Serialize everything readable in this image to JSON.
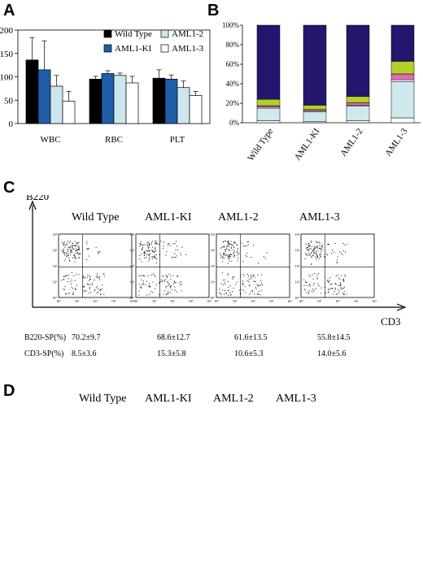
{
  "panels": {
    "a": "A",
    "b": "B",
    "c": "C",
    "d": "D"
  },
  "chart_data": [
    {
      "type": "bar",
      "categories": [
        "WBC",
        "RBC",
        "PLT"
      ],
      "ylim": [
        0,
        200
      ],
      "yticks": [
        0,
        50,
        100,
        150,
        200
      ],
      "legend_position": "top-right",
      "series": [
        {
          "name": "Wild Type",
          "color": "#000000",
          "values": [
            136,
            95,
            97
          ],
          "err": [
            48,
            6,
            18
          ]
        },
        {
          "name": "AML1-KI",
          "color": "#1f5ea8",
          "values": [
            115,
            107,
            95
          ],
          "err": [
            62,
            6,
            9
          ]
        },
        {
          "name": "AML1-2",
          "color": "#cde6ee",
          "values": [
            80,
            103,
            77
          ],
          "err": [
            23,
            5,
            14
          ]
        },
        {
          "name": "AML1-3",
          "color": "#ffffff",
          "values": [
            48,
            87,
            60
          ],
          "err": [
            21,
            14,
            9
          ]
        }
      ]
    },
    {
      "type": "bar",
      "stacked": true,
      "categories": [
        "Wild Type",
        "AML1-KI",
        "AML1-2",
        "AML1-3"
      ],
      "ylim": [
        0,
        100
      ],
      "yticks": [
        "0%",
        "20%",
        "40%",
        "60%",
        "80%",
        "100%"
      ],
      "series": [
        {
          "color": "#ffffff",
          "values": [
            2,
            1,
            2,
            5
          ]
        },
        {
          "color": "#cfe8ee",
          "values": [
            13,
            10,
            15,
            37
          ]
        },
        {
          "color": "#ffffff",
          "values": [
            1,
            1,
            1,
            2
          ]
        },
        {
          "color": "#e06bb0",
          "values": [
            1.5,
            1.5,
            2.5,
            6
          ]
        },
        {
          "color": "#b5ce2a",
          "values": [
            6.5,
            4.5,
            6.5,
            13
          ]
        },
        {
          "color": "#24166e",
          "values": [
            76,
            82,
            73,
            37
          ]
        }
      ]
    }
  ],
  "flow": {
    "y_axis": "B220",
    "x_axis": "CD3",
    "groups": [
      "Wild Type",
      "AML1-KI",
      "AML1-2",
      "AML1-3"
    ],
    "tick_labels": [
      "10⁰",
      "10¹",
      "10²",
      "10³",
      "10⁴"
    ],
    "rows": [
      {
        "label": "B220-SP(%)",
        "values": [
          "70.2±9.7",
          "68.6±12.7",
          "61.6±13.5",
          "55.8±14.5"
        ]
      },
      {
        "label": "CD3-SP(%)",
        "values": [
          "8.5±3.6",
          "15.3±5.8",
          "10.6±5.3",
          "14.0±5.6"
        ]
      }
    ]
  },
  "morphology": {
    "groups": [
      "Wild Type",
      "AML1-KI",
      "AML1-2",
      "AML1-3"
    ]
  }
}
